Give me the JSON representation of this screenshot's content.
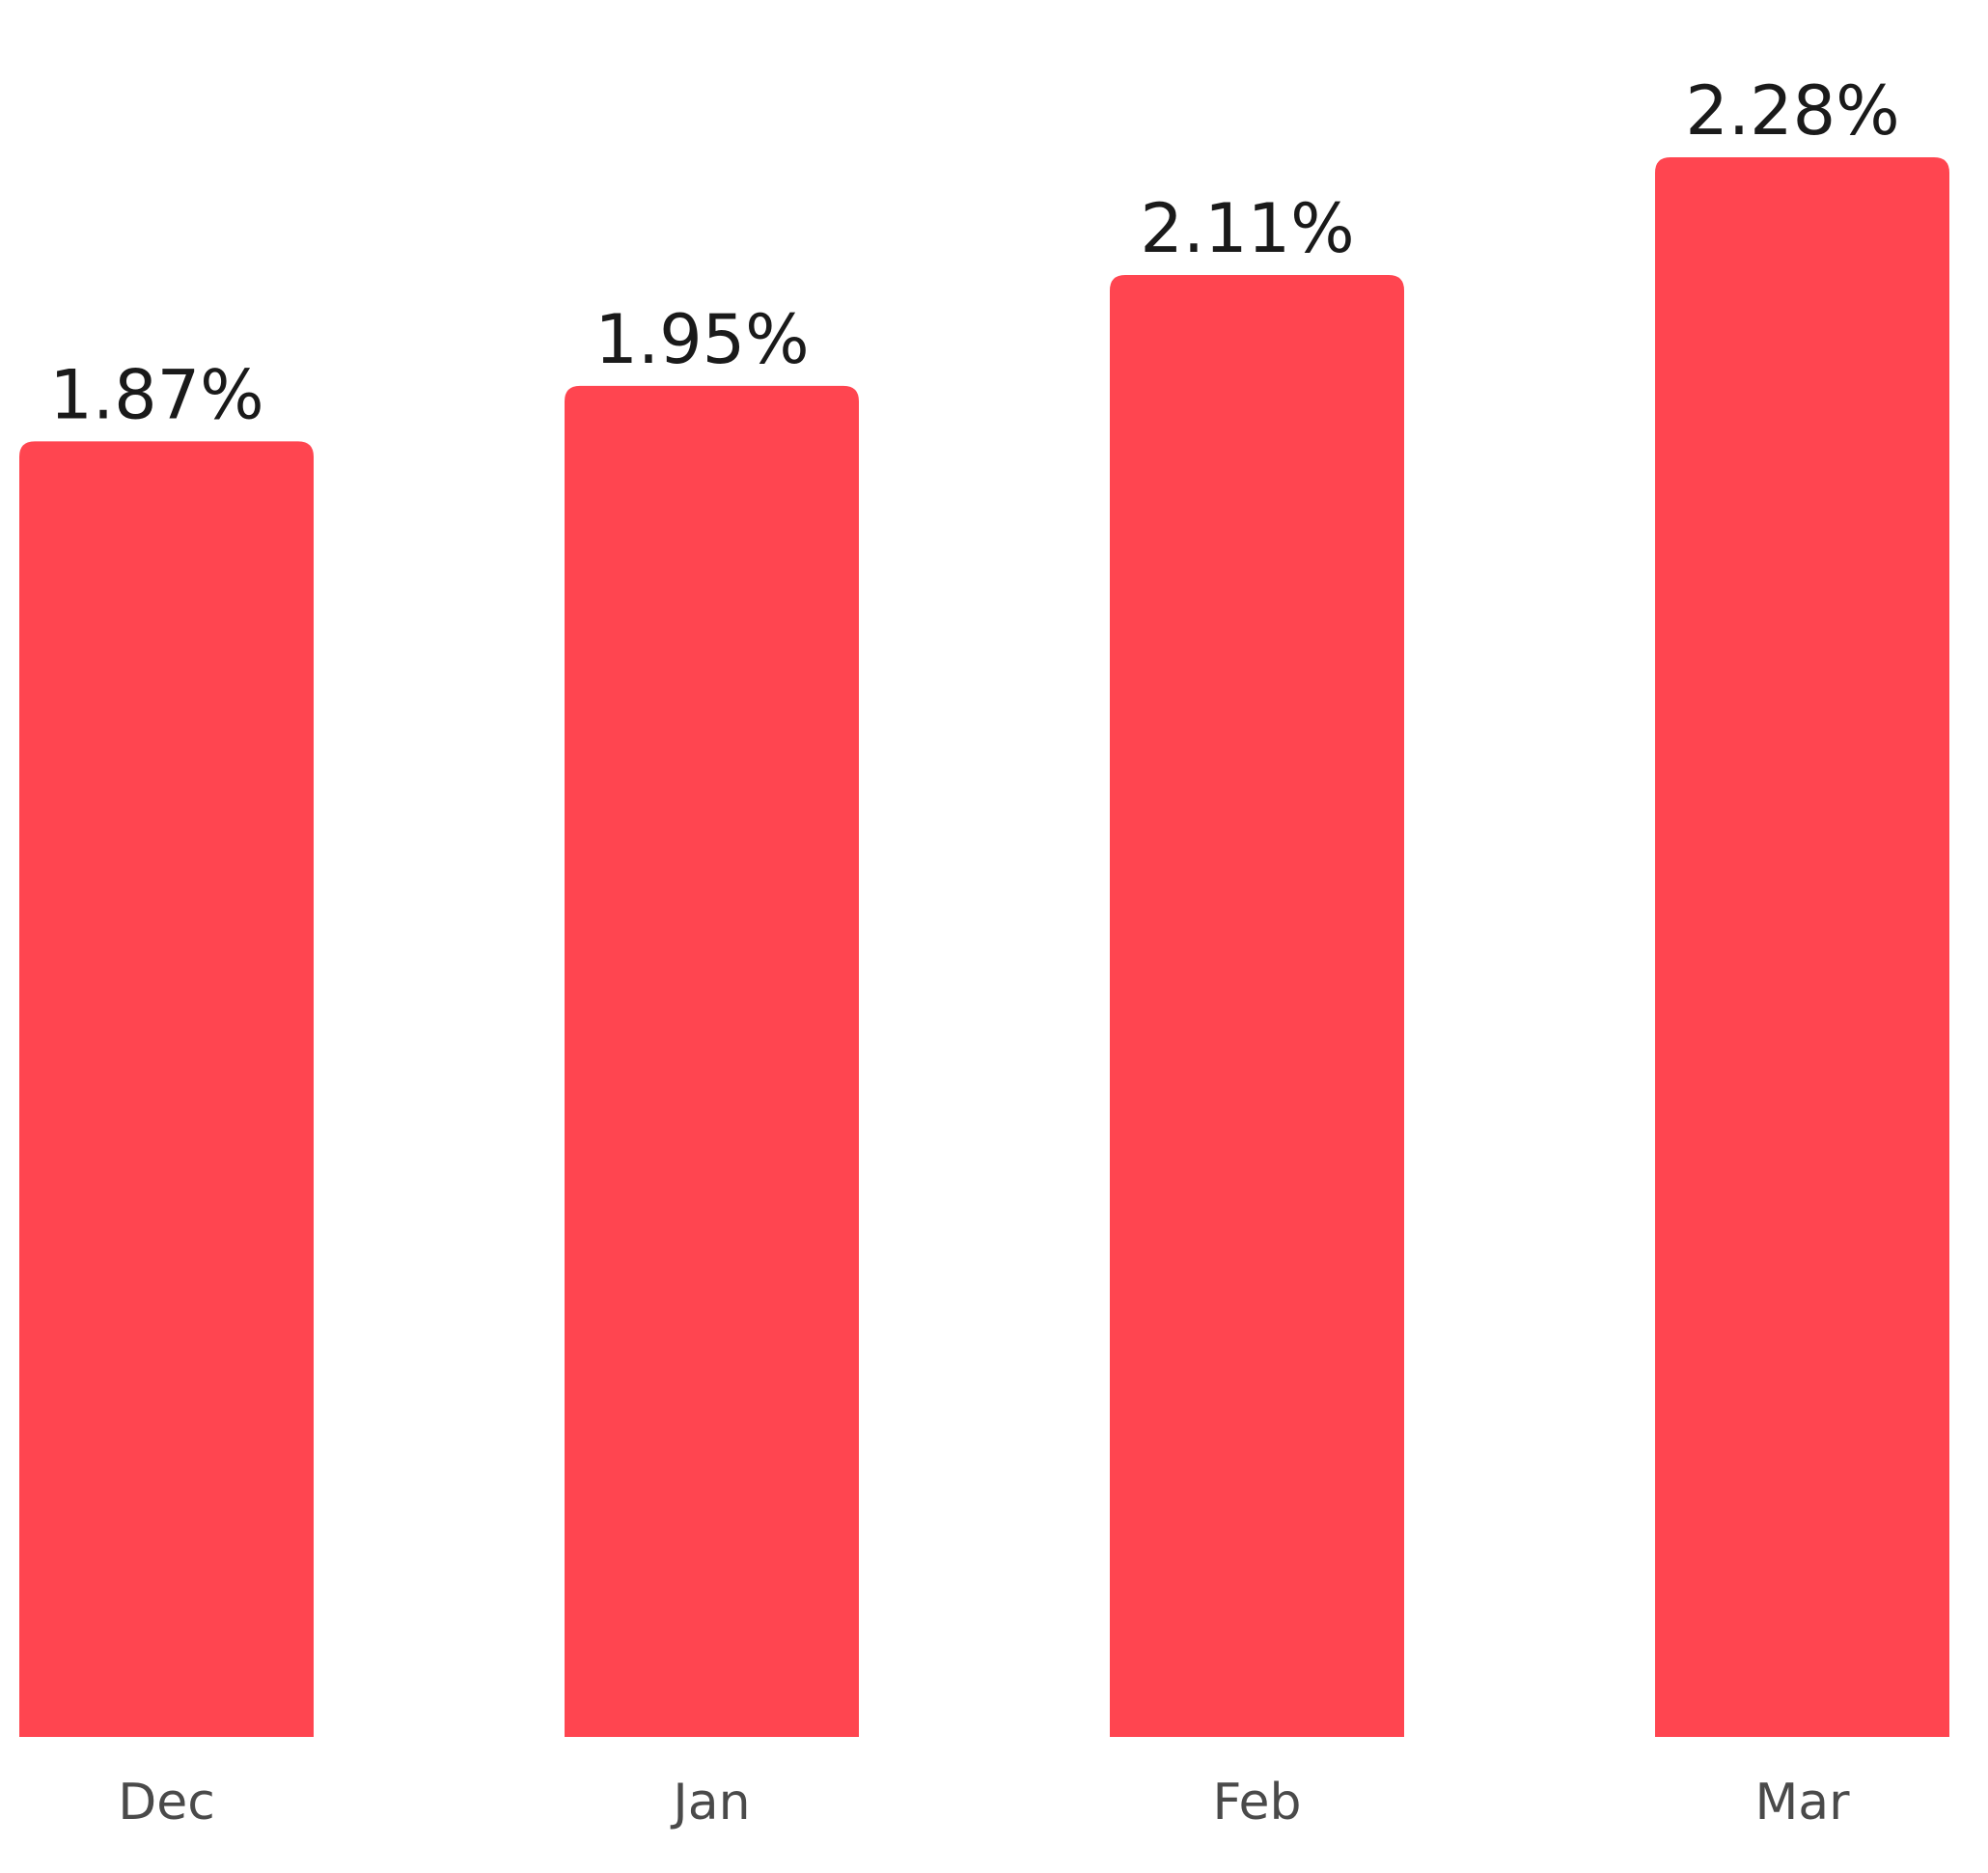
{
  "chart_data": {
    "type": "bar",
    "categories": [
      "Dec",
      "Jan",
      "Feb",
      "Mar"
    ],
    "values": [
      1.87,
      1.95,
      2.11,
      2.28
    ],
    "value_labels": [
      "1.87%",
      "1.95%",
      "2.11%",
      "2.28%"
    ],
    "title": "",
    "xlabel": "",
    "ylabel": "",
    "ylim": [
      0,
      2.28
    ],
    "grid": false,
    "legend": "none",
    "bar_color": "#FF4550"
  }
}
